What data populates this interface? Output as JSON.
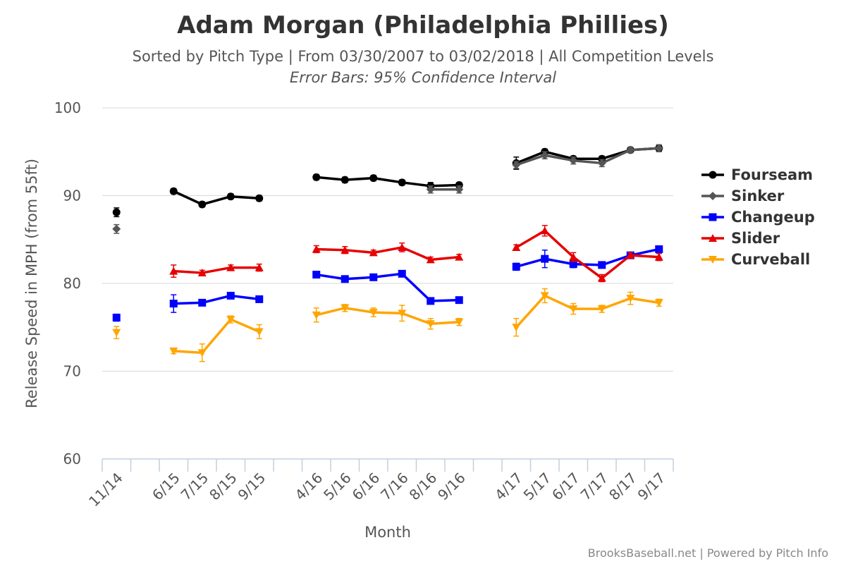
{
  "chart_data": {
    "type": "line",
    "title": "Adam Morgan (Philadelphia Phillies)",
    "subtitle": "Sorted by Pitch Type | From 03/30/2007 to 03/02/2018 | All Competition Levels",
    "subtitle2": "Error Bars: 95% Confidence Interval",
    "xlabel": "Month",
    "ylabel": "Release Speed in MPH (from 55ft)",
    "ylim": [
      60,
      100
    ],
    "yticks": [
      60,
      70,
      80,
      90,
      100
    ],
    "grid": true,
    "legend_position": "right",
    "credits": "BrooksBaseball.net | Powered by Pitch Info",
    "categories": [
      "11/14",
      "",
      "6/15",
      "7/15",
      "8/15",
      "9/15",
      "",
      "4/16",
      "5/16",
      "6/16",
      "7/16",
      "8/16",
      "9/16",
      "",
      "4/17",
      "5/17",
      "6/17",
      "7/17",
      "8/17",
      "9/17"
    ],
    "series": [
      {
        "name": "Fourseam",
        "color": "#000000",
        "marker": "circle",
        "values": [
          88.1,
          null,
          90.5,
          89.0,
          89.9,
          89.7,
          null,
          92.1,
          91.8,
          92.0,
          91.5,
          91.1,
          91.2,
          null,
          93.7,
          95.0,
          94.2,
          94.2,
          95.2,
          95.4
        ],
        "err": [
          0.5,
          null,
          0.3,
          0.3,
          0.3,
          0.3,
          null,
          0.3,
          0.3,
          0.3,
          0.3,
          0.4,
          0.3,
          null,
          0.7,
          0.3,
          0.3,
          0.3,
          0.3,
          0.3
        ]
      },
      {
        "name": "Sinker",
        "color": "#555555",
        "marker": "diamond",
        "values": [
          86.2,
          null,
          null,
          null,
          null,
          null,
          null,
          null,
          null,
          null,
          null,
          90.7,
          90.7,
          null,
          93.5,
          94.6,
          94.0,
          93.7,
          95.2,
          95.4
        ],
        "err": [
          0.5,
          null,
          null,
          null,
          null,
          null,
          null,
          null,
          null,
          null,
          null,
          0.4,
          0.4,
          null,
          0.4,
          0.4,
          0.4,
          0.4,
          0.3,
          0.4
        ]
      },
      {
        "name": "Changeup",
        "color": "#0000ff",
        "marker": "square",
        "values": [
          76.1,
          null,
          77.7,
          77.8,
          78.6,
          78.2,
          null,
          81.0,
          80.5,
          80.7,
          81.1,
          78.0,
          78.1,
          null,
          81.9,
          82.8,
          82.2,
          82.1,
          83.2,
          83.9
        ],
        "err": [
          0.4,
          null,
          1.0,
          0.3,
          0.3,
          0.3,
          null,
          0.3,
          0.3,
          0.3,
          0.3,
          0.3,
          0.3,
          null,
          0.4,
          1.0,
          0.4,
          0.3,
          0.3,
          0.3
        ]
      },
      {
        "name": "Slider",
        "color": "#e60000",
        "marker": "triangle-up",
        "values": [
          null,
          null,
          81.4,
          81.2,
          81.8,
          81.8,
          null,
          83.9,
          83.8,
          83.5,
          84.1,
          82.7,
          83.0,
          null,
          84.1,
          86.0,
          83.0,
          80.6,
          83.2,
          83.0
        ],
        "err": [
          null,
          null,
          0.7,
          0.3,
          0.3,
          0.4,
          null,
          0.4,
          0.4,
          0.3,
          0.5,
          0.3,
          0.3,
          null,
          0.3,
          0.6,
          0.5,
          0.4,
          0.3,
          0.4
        ]
      },
      {
        "name": "Curveball",
        "color": "#ffa500",
        "marker": "triangle-down",
        "values": [
          74.4,
          null,
          72.3,
          72.1,
          75.9,
          74.5,
          null,
          76.4,
          77.2,
          76.7,
          76.6,
          75.4,
          75.6,
          null,
          75.0,
          78.6,
          77.1,
          77.1,
          78.3,
          77.8
        ],
        "err": [
          0.7,
          null,
          0.3,
          1.0,
          0.4,
          0.8,
          null,
          0.8,
          0.4,
          0.5,
          0.9,
          0.6,
          0.4,
          null,
          1.0,
          0.8,
          0.6,
          0.4,
          0.7,
          0.4
        ]
      }
    ]
  }
}
